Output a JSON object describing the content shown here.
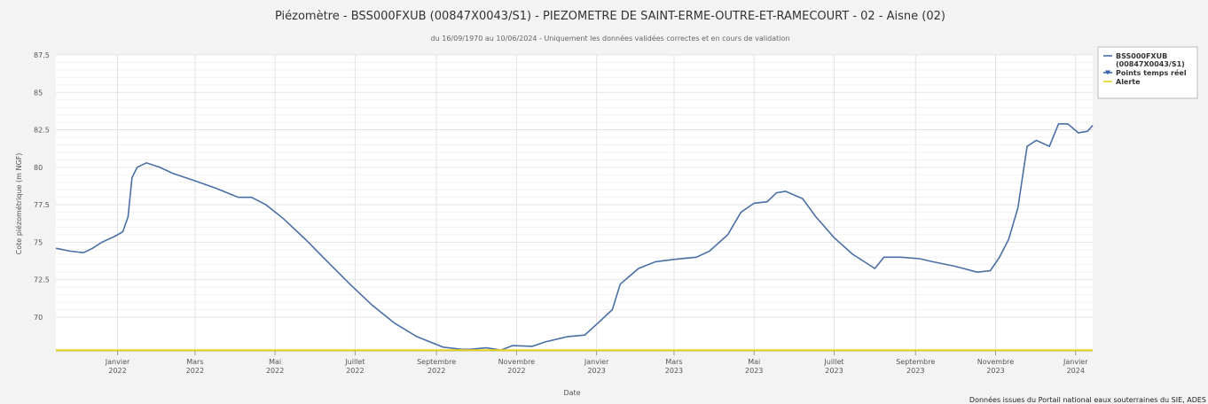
{
  "chart_data": {
    "type": "line",
    "title": "Piézomètre - BSS000FXUB (00847X0043/S1) - PIEZOMETRE DE SAINT-ERME-OUTRE-ET-RAMECOURT - 02 - Aisne (02)",
    "subtitle": "du 16/09/1970 au 10/06/2024 - Uniquement les données validées correctes et en cours de validation",
    "x_label": "Date",
    "y_label": "Cote piézométrique (m NGF)",
    "source": "Données issues du Portail national eaux souterraines du SIE, ADES",
    "xlim": [
      "2021-11-15",
      "2024-01-14"
    ],
    "xticks": [
      {
        "value": "2022-01-01",
        "label": "Janvier 2022"
      },
      {
        "value": "2022-03-01",
        "label": "Mars 2022"
      },
      {
        "value": "2022-05-01",
        "label": "Mai 2022"
      },
      {
        "value": "2022-07-01",
        "label": "Juillet 2022"
      },
      {
        "value": "2022-09-01",
        "label": "Septembre 2022"
      },
      {
        "value": "2022-11-01",
        "label": "Novembre 2022"
      },
      {
        "value": "2023-01-01",
        "label": "Janvier 2023"
      },
      {
        "value": "2023-03-01",
        "label": "Mars 2023"
      },
      {
        "value": "2023-05-01",
        "label": "Mai 2023"
      },
      {
        "value": "2023-07-01",
        "label": "Juillet 2023"
      },
      {
        "value": "2023-09-01",
        "label": "Septembre 2023"
      },
      {
        "value": "2023-11-01",
        "label": "Novembre 2023"
      },
      {
        "value": "2024-01-01",
        "label": "Janvier 2024"
      }
    ],
    "ylim": [
      67.75,
      87.5
    ],
    "yticks": [
      70,
      72.5,
      75,
      77.5,
      80,
      82.5,
      85,
      87.5
    ],
    "grid": true,
    "legend": "right",
    "series": [
      {
        "name": "BSS000FXUB (00847X0043/S1)",
        "color": "#4a6fa5",
        "x": [
          "2021-11-15",
          "2021-11-26",
          "2021-12-06",
          "2021-12-13",
          "2021-12-20",
          "2021-12-30",
          "2022-01-05",
          "2022-01-09",
          "2022-01-12",
          "2022-01-16",
          "2022-01-23",
          "2022-02-02",
          "2022-02-12",
          "2022-03-01",
          "2022-03-17",
          "2022-04-03",
          "2022-04-13",
          "2022-04-24",
          "2022-05-07",
          "2022-05-24",
          "2022-06-10",
          "2022-06-27",
          "2022-07-14",
          "2022-07-31",
          "2022-08-17",
          "2022-09-06",
          "2022-09-20",
          "2022-09-26",
          "2022-10-09",
          "2022-10-20",
          "2022-10-29",
          "2022-11-13",
          "2022-11-23",
          "2022-12-10",
          "2022-12-23",
          "2023-01-02",
          "2023-01-13",
          "2023-01-19",
          "2023-02-02",
          "2023-02-15",
          "2023-03-01",
          "2023-03-18",
          "2023-03-28",
          "2023-04-11",
          "2023-04-21",
          "2023-05-01",
          "2023-05-11",
          "2023-05-18",
          "2023-05-25",
          "2023-06-07",
          "2023-06-17",
          "2023-07-01",
          "2023-07-15",
          "2023-08-01",
          "2023-08-08",
          "2023-08-21",
          "2023-09-04",
          "2023-09-14",
          "2023-10-01",
          "2023-10-18",
          "2023-10-28",
          "2023-11-04",
          "2023-11-11",
          "2023-11-18",
          "2023-11-25",
          "2023-12-02",
          "2023-12-12",
          "2023-12-19",
          "2023-12-26",
          "2024-01-03",
          "2024-01-10",
          "2024-01-14"
        ],
        "values": [
          74.6,
          74.4,
          74.3,
          74.6,
          75.0,
          75.4,
          75.7,
          76.7,
          79.3,
          80.0,
          80.3,
          80.0,
          79.6,
          79.1,
          78.6,
          78.0,
          78.0,
          77.5,
          76.6,
          75.2,
          73.7,
          72.2,
          70.8,
          69.6,
          68.7,
          68.0,
          67.85,
          67.85,
          67.95,
          67.8,
          68.1,
          68.05,
          68.35,
          68.7,
          68.8,
          69.6,
          70.5,
          72.2,
          73.25,
          73.7,
          73.85,
          74.0,
          74.4,
          75.5,
          77.0,
          77.6,
          77.7,
          78.3,
          78.4,
          77.9,
          76.7,
          75.3,
          74.2,
          73.25,
          74.0,
          74.0,
          73.9,
          73.7,
          73.4,
          73.0,
          73.1,
          74.0,
          75.2,
          77.3,
          81.4,
          81.8,
          81.4,
          82.9,
          82.9,
          82.3,
          82.4,
          82.8
        ]
      },
      {
        "name": "Points temps réel",
        "color": "#3a66b0",
        "marker": "triangle-down",
        "x": [],
        "values": []
      },
      {
        "name": "Alerte",
        "color": "#e8d31c",
        "x": [
          "2021-11-15",
          "2024-01-14"
        ],
        "values": [
          67.8,
          67.8
        ]
      }
    ]
  }
}
